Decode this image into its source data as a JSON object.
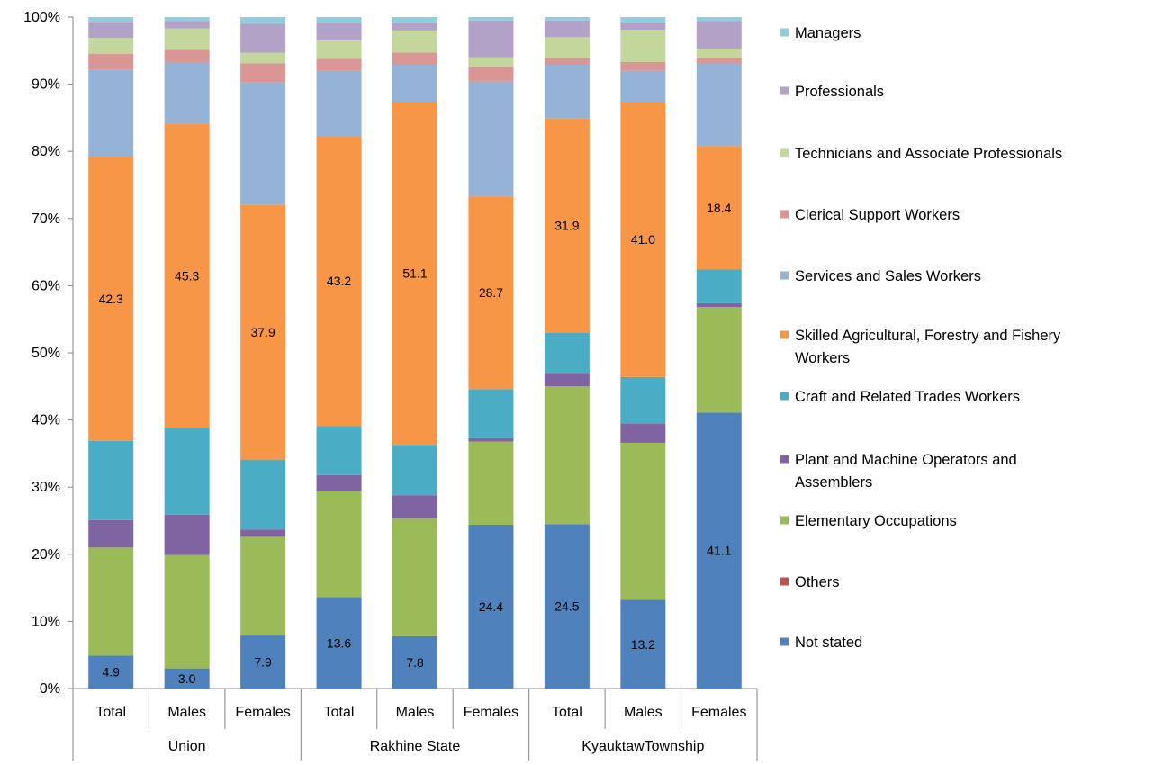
{
  "chart_data": {
    "type": "bar",
    "stacked": true,
    "percent": true,
    "title": "",
    "xlabel": "",
    "ylabel": "",
    "ylim": [
      0,
      100
    ],
    "y_ticks": [
      "0%",
      "10%",
      "20%",
      "30%",
      "40%",
      "50%",
      "60%",
      "70%",
      "80%",
      "90%",
      "100%"
    ],
    "grid": false,
    "legend_position": "right",
    "groups": [
      {
        "name": "Union",
        "categories": [
          "Total",
          "Males",
          "Females"
        ]
      },
      {
        "name": "Rakhine State",
        "categories": [
          "Total",
          "Males",
          "Females"
        ]
      },
      {
        "name": "KyauktawTownship",
        "categories": [
          "Total",
          "Males",
          "Females"
        ]
      }
    ],
    "categories": [
      "Total",
      "Males",
      "Females",
      "Total",
      "Males",
      "Females",
      "Total",
      "Males",
      "Females"
    ],
    "series": [
      {
        "name": "Not stated",
        "color": "#4f81bd",
        "values": [
          4.9,
          3.0,
          7.9,
          13.6,
          7.8,
          24.4,
          24.5,
          13.2,
          41.1
        ],
        "labels": [
          "4.9",
          "3.0",
          "7.9",
          "13.6",
          "7.8",
          "24.4",
          "24.5",
          "13.2",
          "41.1"
        ]
      },
      {
        "name": "Others",
        "color": "#c0504d",
        "values": [
          0.0,
          0.0,
          0.0,
          0.0,
          0.0,
          0.0,
          0.0,
          0.0,
          0.0
        ],
        "labels": []
      },
      {
        "name": "Elementary Occupations",
        "color": "#9bbb59",
        "values": [
          16.1,
          16.9,
          14.7,
          15.8,
          17.5,
          12.4,
          20.5,
          23.4,
          15.7
        ],
        "labels": []
      },
      {
        "name": "Plant and Machine Operators and Assemblers",
        "color": "#8064a2",
        "values": [
          4.1,
          6.0,
          1.1,
          2.4,
          3.5,
          0.5,
          2.0,
          2.9,
          0.6
        ],
        "labels": []
      },
      {
        "name": "Craft and Related Trades Workers",
        "color": "#4bacc6",
        "values": [
          11.8,
          12.9,
          10.4,
          7.3,
          7.5,
          7.3,
          6.0,
          6.9,
          5.0
        ],
        "labels": []
      },
      {
        "name": "Skilled Agricultural, Forestry and Fishery Workers",
        "color": "#f79646",
        "values": [
          42.3,
          45.3,
          37.9,
          43.2,
          51.1,
          28.7,
          31.9,
          41.0,
          18.4
        ],
        "labels": [
          "42.3",
          "45.3",
          "37.9",
          "43.2",
          "51.1",
          "28.7",
          "31.9",
          "41.0",
          "18.4"
        ]
      },
      {
        "name": "Services and Sales Workers",
        "color": "#95b3d7",
        "values": [
          13.0,
          9.2,
          18.3,
          9.7,
          5.5,
          17.1,
          8.0,
          4.6,
          12.3
        ],
        "labels": []
      },
      {
        "name": "Clerical Support Workers",
        "color": "#d99694",
        "values": [
          2.3,
          1.8,
          2.8,
          1.8,
          1.8,
          2.2,
          1.0,
          1.3,
          0.8
        ],
        "labels": []
      },
      {
        "name": "Technicians and Associate Professionals",
        "color": "#c3d69b",
        "values": [
          2.4,
          3.2,
          1.6,
          2.7,
          3.3,
          1.4,
          3.1,
          4.8,
          1.4
        ],
        "labels": []
      },
      {
        "name": "Professionals",
        "color": "#b3a2c7",
        "values": [
          2.4,
          1.1,
          4.3,
          2.6,
          1.1,
          5.5,
          2.5,
          1.1,
          4.1
        ],
        "labels": []
      },
      {
        "name": "Managers",
        "color": "#93cddd",
        "values": [
          0.7,
          0.6,
          1.0,
          0.9,
          0.9,
          0.5,
          0.5,
          0.8,
          0.6
        ],
        "labels": []
      }
    ],
    "legend_order": [
      "Managers",
      "Professionals",
      "Technicians and Associate Professionals",
      "Clerical Support Workers",
      "Services and Sales Workers",
      "Skilled Agricultural, Forestry and Fishery Workers",
      "Craft and Related Trades Workers",
      "Plant and Machine Operators and Assemblers",
      "Elementary Occupations",
      "Others",
      "Not stated"
    ]
  }
}
